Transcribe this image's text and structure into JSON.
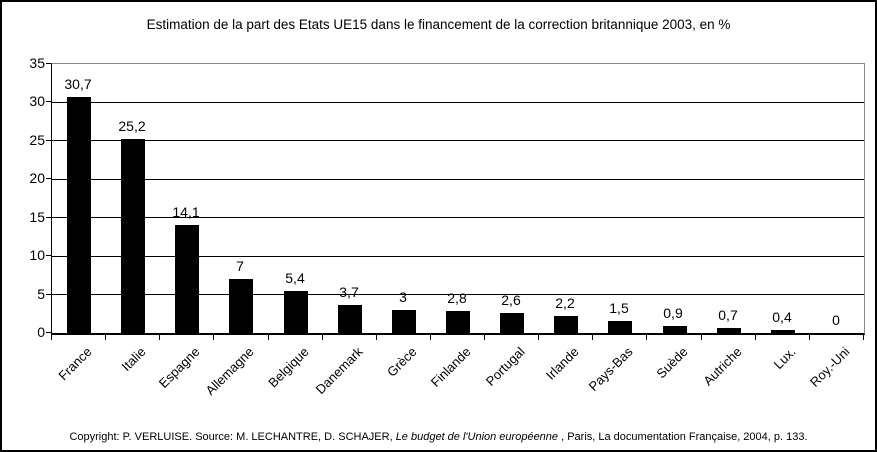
{
  "title": "Estimation de la part des Etats UE15 dans le financement de la correction britannique 2003, en %",
  "chart_data": {
    "type": "bar",
    "title": "Estimation de la part des Etats UE15 dans le financement de la correction britannique 2003, en %",
    "categories": [
      "France",
      "Italie",
      "Espagne",
      "Allemagne",
      "Belgique",
      "Danemark",
      "Grèce",
      "Finlande",
      "Portugal",
      "Irlande",
      "Pays-Bas",
      "Suède",
      "Autriche",
      "Lux.",
      "Roy.-Uni"
    ],
    "values": [
      30.7,
      25.2,
      14.1,
      7,
      5.4,
      3.7,
      3,
      2.8,
      2.6,
      2.2,
      1.5,
      0.9,
      0.7,
      0.4,
      0
    ],
    "value_labels": [
      "30,7",
      "25,2",
      "14,1",
      "7",
      "5,4",
      "3,7",
      "3",
      "2,8",
      "2,6",
      "2,2",
      "1,5",
      "0,9",
      "0,7",
      "0,4",
      "0"
    ],
    "y_ticks": [
      0,
      5,
      10,
      15,
      20,
      25,
      30,
      35
    ],
    "ylim": [
      0,
      35
    ],
    "xlabel": "",
    "ylabel": "",
    "grid": true,
    "legend": false,
    "bar_color": "#000000",
    "background_color": "#ffffff"
  },
  "footer": {
    "prefix": "Copyright: P. VERLUISE. Source: M. LECHANTRE, D. SCHAJER, ",
    "italic": "Le budget de l'Union européenne",
    "suffix": " , Paris, La documentation Française, 2004, p. 133."
  }
}
